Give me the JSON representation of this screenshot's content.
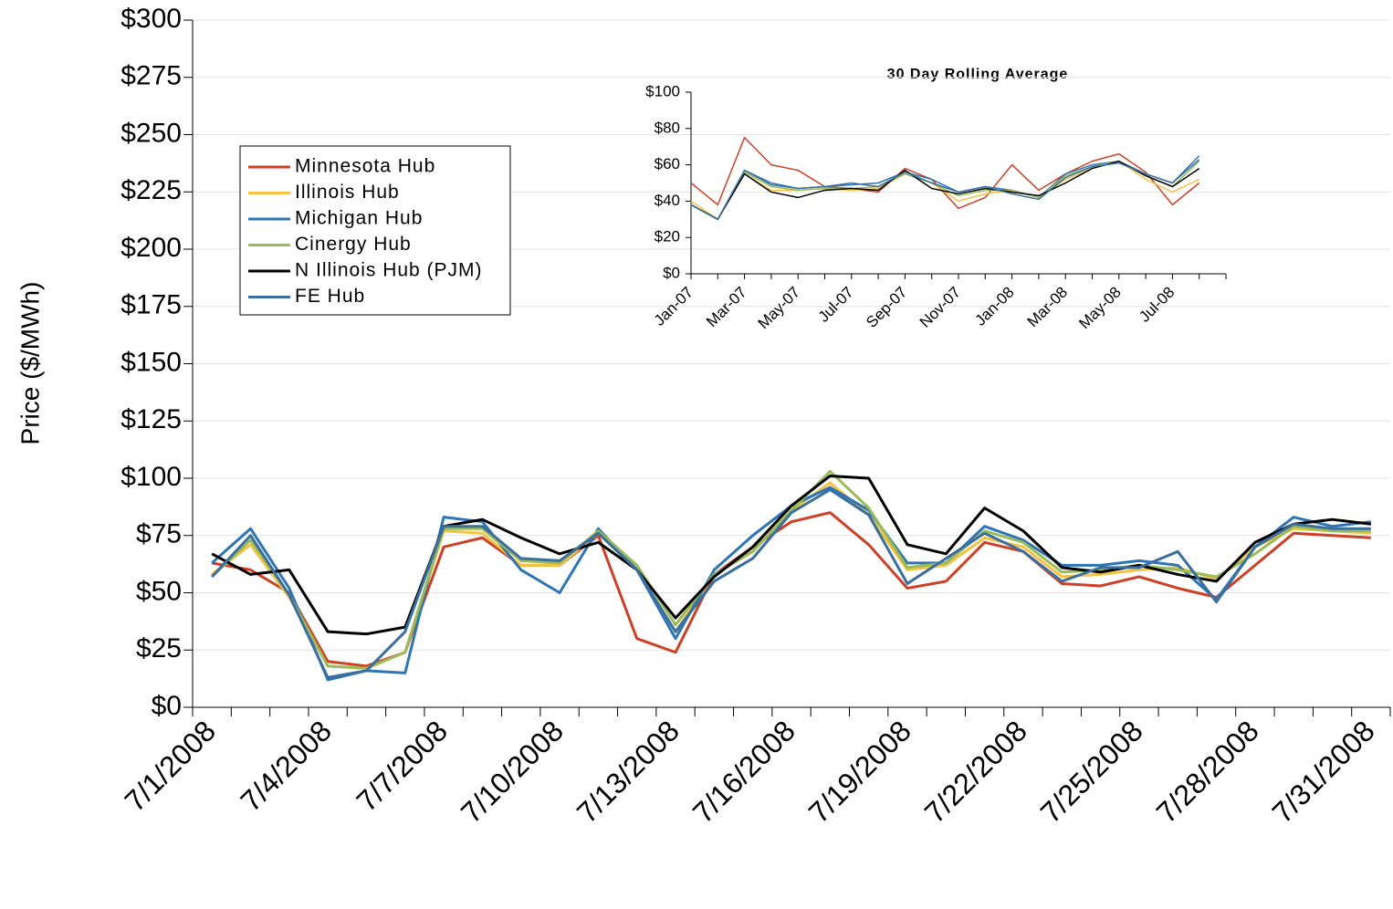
{
  "chart_data": [
    {
      "type": "line",
      "ylabel": "Price ($/MWh)",
      "grid": true,
      "legend": "upper left",
      "categories": [
        "7/1/2008",
        null,
        null,
        "7/4/2008",
        null,
        null,
        "7/7/2008",
        null,
        null,
        "7/10/2008",
        null,
        null,
        "7/13/2008",
        null,
        null,
        "7/16/2008",
        null,
        null,
        "7/19/2008",
        null,
        null,
        "7/22/2008",
        null,
        null,
        "7/25/2008",
        null,
        null,
        "7/28/2008",
        null,
        null,
        "7/31/2008"
      ],
      "ylim": [
        0,
        300
      ],
      "yticks": [
        {
          "value": 0,
          "label": "$0"
        },
        {
          "value": 25,
          "label": "$25"
        },
        {
          "value": 50,
          "label": "$50"
        },
        {
          "value": 75,
          "label": "$75"
        },
        {
          "value": 100,
          "label": "$100"
        },
        {
          "value": 125,
          "label": "$125"
        },
        {
          "value": 150,
          "label": "$150"
        },
        {
          "value": 175,
          "label": "$175"
        },
        {
          "value": 200,
          "label": "$200"
        },
        {
          "value": 225,
          "label": "$225"
        },
        {
          "value": 250,
          "label": "$250"
        },
        {
          "value": 275,
          "label": "$275"
        },
        {
          "value": 300,
          "label": "$300"
        }
      ],
      "series": [
        {
          "name": "Minnesota Hub",
          "color": "#cc4125",
          "values": [
            63,
            60,
            50,
            20,
            18,
            24,
            70,
            74,
            62,
            62,
            75,
            30,
            24,
            58,
            70,
            81,
            85,
            71,
            52,
            55,
            72,
            68,
            54,
            53,
            57,
            52,
            48,
            62,
            76,
            75,
            74
          ]
        },
        {
          "name": "Illinois Hub",
          "color": "#f5c242",
          "values": [
            58,
            71,
            48,
            18,
            17,
            24,
            77,
            76,
            62,
            62,
            76,
            60,
            33,
            58,
            68,
            86,
            98,
            84,
            60,
            62,
            74,
            70,
            57,
            58,
            60,
            61,
            56,
            70,
            78,
            77,
            76
          ]
        },
        {
          "name": "Michigan Hub",
          "color": "#2e75b6",
          "values": [
            63,
            78,
            52,
            12,
            16,
            15,
            83,
            81,
            60,
            50,
            78,
            60,
            30,
            60,
            75,
            88,
            96,
            86,
            63,
            63,
            79,
            73,
            62,
            62,
            64,
            62,
            47,
            70,
            83,
            79,
            81
          ]
        },
        {
          "name": "Cinergy Hub",
          "color": "#9bbb59",
          "values": [
            57,
            73,
            49,
            18,
            17,
            24,
            78,
            78,
            64,
            63,
            77,
            62,
            36,
            58,
            68,
            86,
            103,
            87,
            61,
            63,
            77,
            72,
            59,
            60,
            62,
            60,
            57,
            67,
            79,
            77,
            77
          ]
        },
        {
          "name": "N Illinois Hub (PJM)",
          "color": "#000000",
          "values": [
            67,
            58,
            60,
            33,
            32,
            35,
            79,
            82,
            74,
            67,
            72,
            60,
            39,
            57,
            70,
            88,
            101,
            100,
            71,
            67,
            87,
            77,
            61,
            59,
            62,
            58,
            55,
            72,
            80,
            82,
            80
          ]
        },
        {
          "name": "FE Hub",
          "color": "#3a6fa0",
          "values": [
            57,
            75,
            49,
            13,
            16,
            33,
            79,
            79,
            65,
            64,
            76,
            60,
            33,
            55,
            65,
            85,
            95,
            84,
            54,
            65,
            76,
            68,
            55,
            61,
            61,
            68,
            46,
            70,
            80,
            78,
            78
          ]
        }
      ]
    },
    {
      "type": "line",
      "title": "30 Day Rolling Average",
      "grid": false,
      "categories": [
        "Jan-07",
        null,
        "Mar-07",
        null,
        "May-07",
        null,
        "Jul-07",
        null,
        "Sep-07",
        null,
        "Nov-07",
        null,
        "Jan-08",
        null,
        "Mar-08",
        null,
        "May-08",
        null,
        "Jul-08",
        null
      ],
      "ylim": [
        0,
        100
      ],
      "yticks": [
        {
          "value": 0,
          "label": "$0"
        },
        {
          "value": 20,
          "label": "$20"
        },
        {
          "value": 40,
          "label": "$40"
        },
        {
          "value": 60,
          "label": "$60"
        },
        {
          "value": 80,
          "label": "$80"
        },
        {
          "value": 100,
          "label": "$100"
        }
      ],
      "series": [
        {
          "color": "#cc4125",
          "values": [
            50,
            38,
            75,
            60,
            57,
            48,
            47,
            45,
            58,
            52,
            36,
            42,
            60,
            46,
            55,
            62,
            66,
            56,
            38,
            50
          ]
        },
        {
          "color": "#f5c242",
          "values": [
            40,
            30,
            55,
            46,
            46,
            47,
            46,
            47,
            55,
            50,
            40,
            44,
            46,
            42,
            52,
            58,
            62,
            52,
            45,
            52
          ]
        },
        {
          "color": "#2e75b6",
          "values": [
            38,
            30,
            57,
            50,
            47,
            48,
            49,
            50,
            56,
            52,
            45,
            48,
            46,
            42,
            55,
            60,
            62,
            55,
            50,
            65
          ]
        },
        {
          "color": "#9bbb59",
          "values": [
            38,
            30,
            56,
            48,
            46,
            47,
            47,
            48,
            55,
            50,
            43,
            46,
            46,
            42,
            54,
            59,
            62,
            54,
            48,
            62
          ]
        },
        {
          "color": "#000000",
          "values": [
            38,
            30,
            55,
            45,
            42,
            46,
            47,
            46,
            57,
            47,
            44,
            47,
            45,
            43,
            50,
            58,
            62,
            54,
            48,
            58
          ]
        },
        {
          "color": "#3a6fa0",
          "values": [
            38,
            30,
            57,
            49,
            47,
            48,
            50,
            48,
            56,
            50,
            45,
            48,
            44,
            41,
            53,
            59,
            61,
            55,
            50,
            63
          ]
        }
      ]
    }
  ]
}
